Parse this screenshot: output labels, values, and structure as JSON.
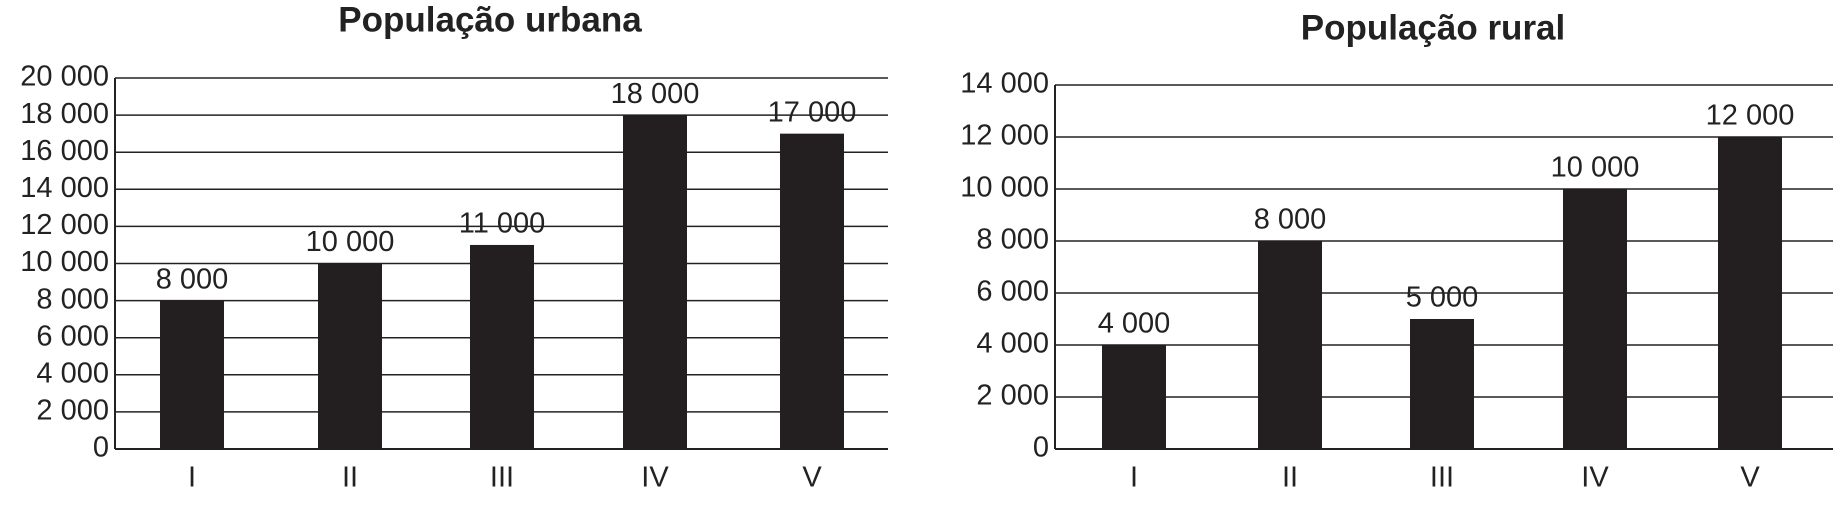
{
  "chart_data": [
    {
      "type": "bar",
      "title": "População urbana",
      "categories": [
        "I",
        "II",
        "III",
        "IV",
        "V"
      ],
      "values": [
        8000,
        10000,
        11000,
        18000,
        17000
      ],
      "value_labels": [
        "8 000",
        "10 000",
        "11 000",
        "18 000",
        "17 000"
      ],
      "color": "#231f20",
      "ylim": [
        0,
        20000
      ],
      "yticks": [
        0,
        {
          "value": 2000,
          "label": "2 000"
        },
        {
          "value": 4000,
          "label": "4 000"
        },
        {
          "value": 6000,
          "label": "6 000"
        },
        {
          "value": 8000,
          "label": "8 000"
        },
        {
          "value": 10000,
          "label": "10 000"
        },
        {
          "value": 12000,
          "label": "12 000"
        },
        {
          "value": 14000,
          "label": "14 000"
        },
        {
          "value": 16000,
          "label": "16 000"
        },
        {
          "value": 18000,
          "label": "18 000"
        },
        {
          "value": 20000,
          "label": "20 000"
        }
      ],
      "grid": true
    },
    {
      "type": "bar",
      "title": "População rural",
      "categories": [
        "I",
        "II",
        "III",
        "IV",
        "V"
      ],
      "values": [
        4000,
        8000,
        5000,
        10000,
        12000
      ],
      "value_labels": [
        "4 000",
        "8 000",
        "5 000",
        "10 000",
        "12 000"
      ],
      "color": "#231f20",
      "ylim": [
        0,
        14000
      ],
      "yticks": [
        0,
        {
          "value": 2000,
          "label": "2 000"
        },
        {
          "value": 4000,
          "label": "4 000"
        },
        {
          "value": 6000,
          "label": "6 000"
        },
        {
          "value": 8000,
          "label": "8 000"
        },
        {
          "value": 10000,
          "label": "10 000"
        },
        {
          "value": 12000,
          "label": "12 000"
        },
        {
          "value": 14000,
          "label": "14 000"
        }
      ],
      "grid": true
    }
  ]
}
